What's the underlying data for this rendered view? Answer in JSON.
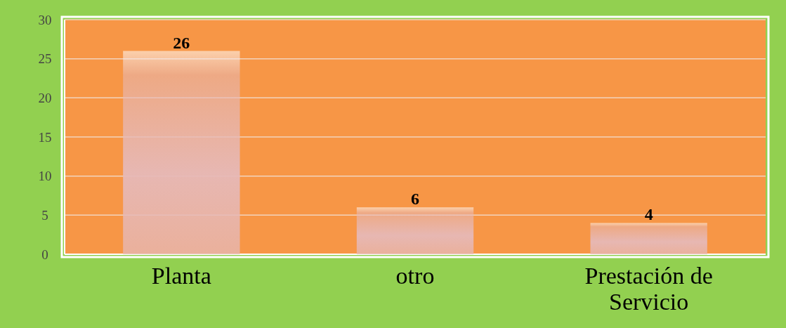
{
  "chart_data": {
    "type": "bar",
    "categories": [
      "Planta",
      "otro",
      "Prestación de Servicio"
    ],
    "values": [
      26,
      6,
      4
    ],
    "color": "#e6b9b8",
    "ylim": [
      0,
      30
    ],
    "yticks": [
      0,
      5,
      10,
      15,
      20,
      25,
      30
    ],
    "grid": "y",
    "data_labels": true
  }
}
